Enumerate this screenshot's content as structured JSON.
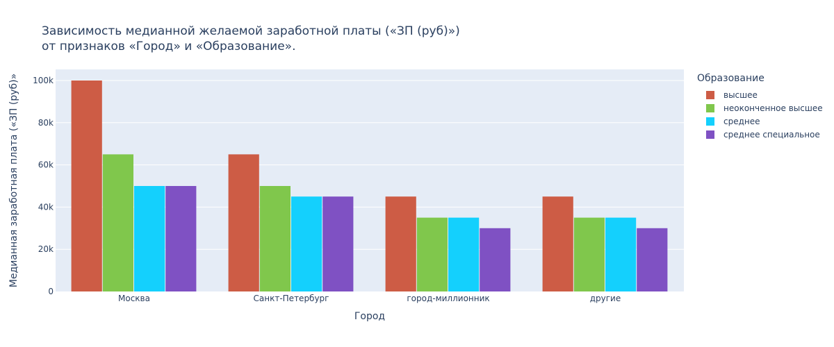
{
  "chart_data": {
    "type": "bar",
    "title": "Зависимость медианной желаемой заработной платы («ЗП (руб)»)",
    "subtitle": "от признаков «Город» и «Образование».",
    "xlabel": "Город",
    "ylabel": "Медианная заработная плата («ЗП (руб)»",
    "categories": [
      "Москва",
      "Санкт-Петербург",
      "город-миллионник",
      "другие"
    ],
    "legend_title": "Образование",
    "legend_placement": "right",
    "series": [
      {
        "name": "высшее",
        "color": "#cd5c45",
        "values": [
          100000,
          65000,
          45000,
          45000
        ]
      },
      {
        "name": "неоконченное высшее",
        "color": "#80c74c",
        "values": [
          65000,
          50000,
          35000,
          35000
        ]
      },
      {
        "name": "среднее",
        "color": "#14d0fd",
        "values": [
          50000,
          45000,
          35000,
          35000
        ]
      },
      {
        "name": "среднее специальное",
        "color": "#7f51c3",
        "values": [
          50000,
          45000,
          30000,
          30000
        ]
      }
    ],
    "ylim": [
      0,
      105263
    ],
    "yticks": [
      0,
      20000,
      40000,
      60000,
      80000,
      100000
    ],
    "ytick_labels": [
      "0",
      "20k",
      "40k",
      "60k",
      "80k",
      "100k"
    ],
    "grid": true,
    "plot_background": "#e5ecf6"
  }
}
